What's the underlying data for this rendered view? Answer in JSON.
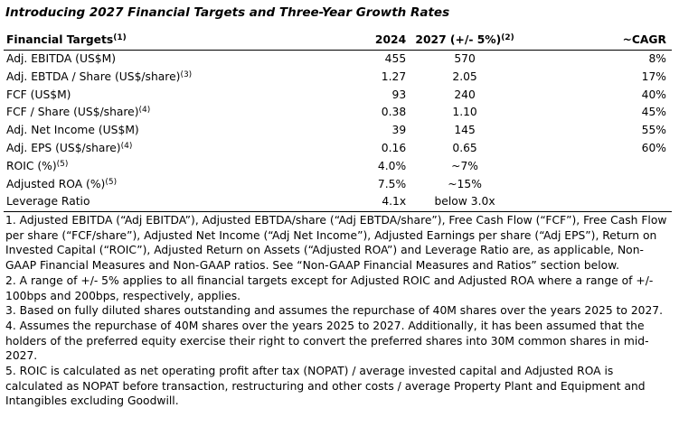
{
  "title": "Introducing 2027 Financial Targets and Three-Year Growth Rates",
  "table": {
    "headers": {
      "label": "Financial Targets",
      "label_sup": "(1)",
      "col_2024": "2024",
      "col_2027": "2027 (+/- 5%)",
      "col_2027_sup": "(2)",
      "col_cagr": "~CAGR"
    },
    "rows": [
      {
        "label": "Adj. EBITDA (US$M)",
        "sup": "",
        "v2024": "455",
        "v2027": "570",
        "cagr": "8%"
      },
      {
        "label": "Adj. EBTDA / Share (US$/share)",
        "sup": "(3)",
        "v2024": "1.27",
        "v2027": "2.05",
        "cagr": "17%"
      },
      {
        "label": "FCF (US$M)",
        "sup": "",
        "v2024": "93",
        "v2027": "240",
        "cagr": "40%"
      },
      {
        "label": "FCF / Share (US$/share)",
        "sup": "(4)",
        "v2024": "0.38",
        "v2027": "1.10",
        "cagr": "45%"
      },
      {
        "label": "Adj. Net Income (US$M)",
        "sup": "",
        "v2024": "39",
        "v2027": "145",
        "cagr": "55%"
      },
      {
        "label": "Adj. EPS (US$/share)",
        "sup": "(4)",
        "v2024": "0.16",
        "v2027": "0.65",
        "cagr": "60%"
      },
      {
        "label": "ROIC (%)",
        "sup": "(5)",
        "v2024": "4.0%",
        "v2027": "~7%",
        "cagr": ""
      },
      {
        "label": "Adjusted ROA (%)",
        "sup": "(5)",
        "v2024": "7.5%",
        "v2027": "~15%",
        "cagr": ""
      },
      {
        "label": "Leverage Ratio",
        "sup": "",
        "v2024": "4.1x",
        "v2027": "below 3.0x",
        "cagr": ""
      }
    ]
  },
  "footnotes": [
    "1. Adjusted EBITDA (“Adj EBITDA”), Adjusted EBTDA/share (“Adj EBTDA/share”), Free Cash Flow (“FCF”), Free Cash Flow per share (“FCF/share”), Adjusted Net Income (“Adj Net Income”), Adjusted Earnings per share (“Adj EPS”), Return on Invested Capital (“ROIC”), Adjusted Return on Assets (“Adjusted ROA”) and Leverage Ratio are, as applicable, Non-GAAP Financial Measures and Non-GAAP ratios. See “Non-GAAP Financial Measures and Ratios” section below.",
    "2. A range of +/- 5% applies to all financial targets except for Adjusted ROIC and Adjusted ROA where a range of +/- 100bps and 200bps, respectively, applies.",
    "3. Based on fully diluted shares outstanding and assumes the repurchase of 40M shares over the years 2025 to 2027.",
    "4. Assumes the repurchase of 40M shares over the years 2025 to 2027. Additionally, it has been assumed that the holders of the preferred equity exercise their right to convert the preferred shares into 30M common shares in mid-2027.",
    "5. ROIC is calculated as net operating profit after tax (NOPAT) / average invested capital and Adjusted ROA is calculated as NOPAT before transaction, restructuring and other costs / average Property Plant and Equipment and Intangibles excluding Goodwill."
  ]
}
